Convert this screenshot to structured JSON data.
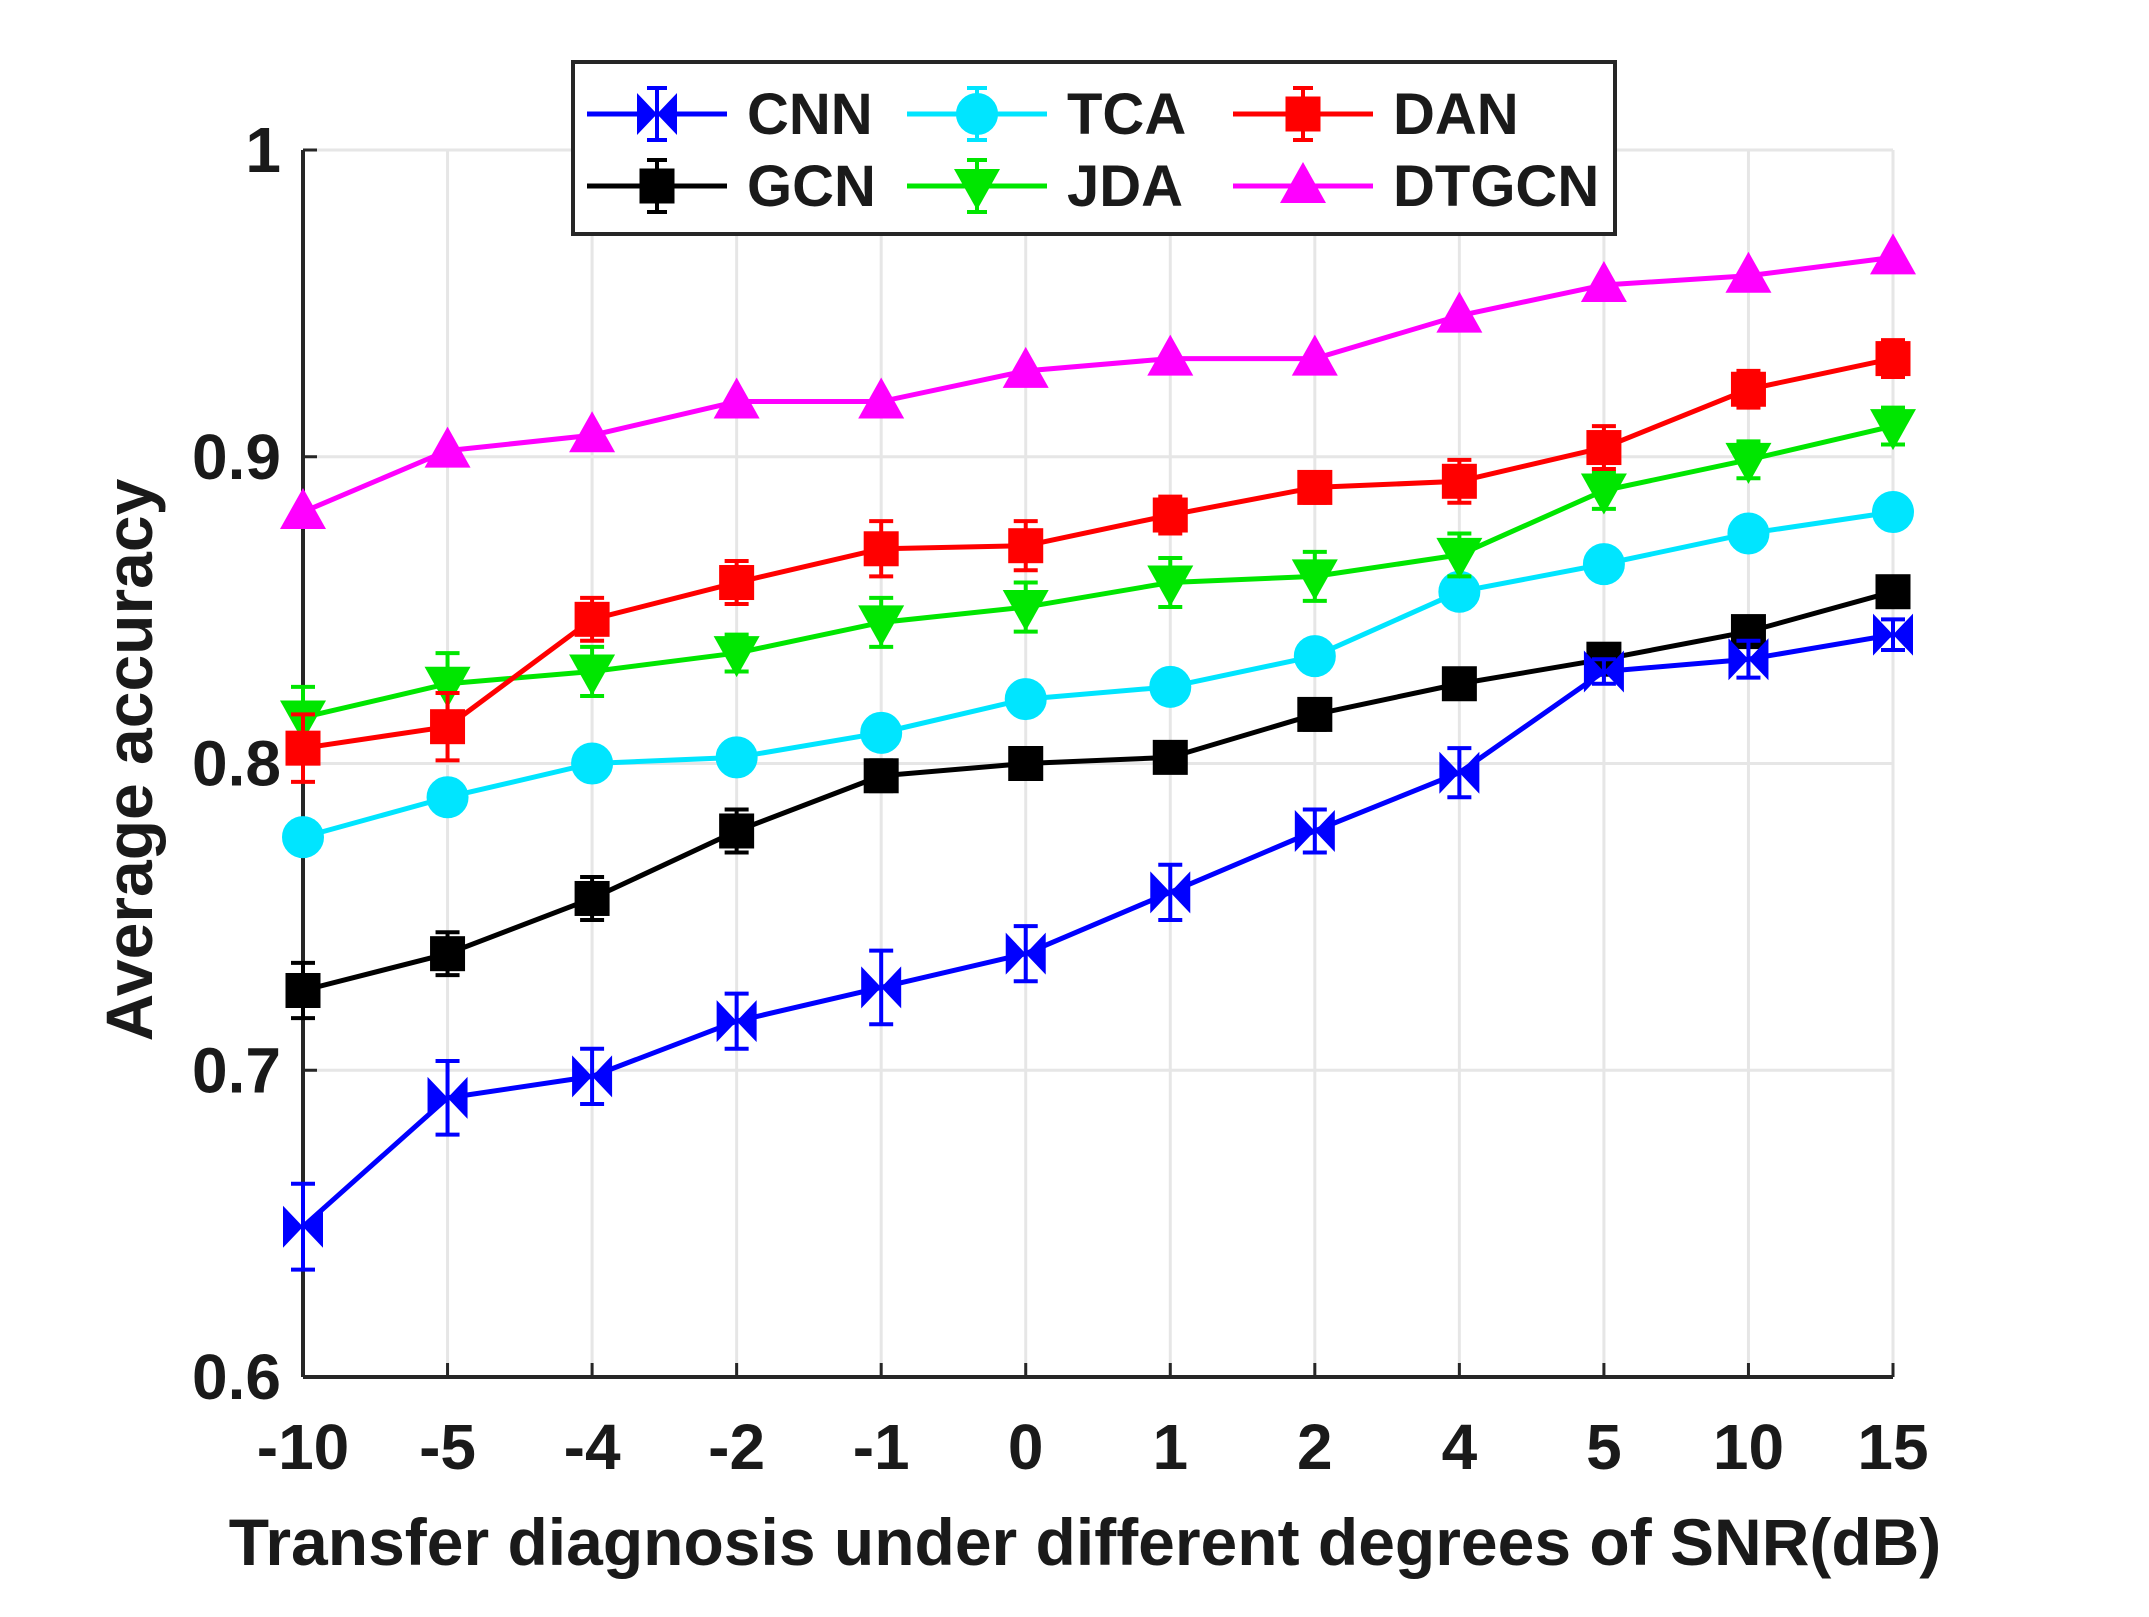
{
  "chart_data": {
    "type": "line",
    "xlabel": "Transfer diagnosis under different degrees of SNR(dB)",
    "ylabel": "Average accuracy",
    "categories": [
      "-10",
      "-5",
      "-4",
      "-2",
      "-1",
      "0",
      "1",
      "2",
      "4",
      "5",
      "10",
      "15"
    ],
    "ylim": [
      0.6,
      1.0
    ],
    "yticks": [
      "0.6",
      "0.7",
      "0.8",
      "0.9",
      "1"
    ],
    "grid": true,
    "legend_placement": "top",
    "series": [
      {
        "name": "CNN",
        "color": "#0000ff",
        "marker": "bowtie",
        "values": [
          0.649,
          0.691,
          0.698,
          0.716,
          0.727,
          0.738,
          0.758,
          0.778,
          0.797,
          0.83,
          0.834,
          0.842
        ],
        "errors": [
          0.014,
          0.012,
          0.009,
          0.009,
          0.012,
          0.009,
          0.009,
          0.007,
          0.008,
          0.004,
          0.006,
          0.005
        ]
      },
      {
        "name": "TCA",
        "color": "#00e5ff",
        "marker": "circle",
        "values": [
          0.776,
          0.789,
          0.8,
          0.802,
          0.81,
          0.821,
          0.825,
          0.835,
          0.856,
          0.865,
          0.875,
          0.882
        ],
        "errors": [
          0.005,
          0.005,
          0.004,
          0.004,
          0.004,
          0.004,
          0.004,
          0.004,
          0.004,
          0.004,
          0.004,
          0.004
        ]
      },
      {
        "name": "DAN",
        "color": "#ff0000",
        "marker": "square",
        "values": [
          0.805,
          0.812,
          0.847,
          0.859,
          0.87,
          0.871,
          0.881,
          0.89,
          0.892,
          0.903,
          0.922,
          0.932
        ],
        "errors": [
          0.011,
          0.011,
          0.007,
          0.007,
          0.009,
          0.008,
          0.006,
          0.005,
          0.007,
          0.007,
          0.006,
          0.006
        ]
      },
      {
        "name": "GCN",
        "color": "#000000",
        "marker": "square",
        "values": [
          0.726,
          0.738,
          0.756,
          0.778,
          0.796,
          0.8,
          0.802,
          0.816,
          0.826,
          0.834,
          0.843,
          0.856
        ],
        "errors": [
          0.009,
          0.007,
          0.007,
          0.007,
          0.005,
          0.004,
          0.004,
          0.005,
          0.004,
          0.004,
          0.004,
          0.004
        ]
      },
      {
        "name": "JDA",
        "color": "#00e600",
        "marker": "triangle-down",
        "values": [
          0.815,
          0.826,
          0.83,
          0.836,
          0.846,
          0.851,
          0.859,
          0.861,
          0.868,
          0.889,
          0.899,
          0.91
        ],
        "errors": [
          0.01,
          0.01,
          0.008,
          0.006,
          0.008,
          0.008,
          0.008,
          0.008,
          0.007,
          0.006,
          0.006,
          0.006
        ]
      },
      {
        "name": "DTGCN",
        "color": "#ff00ff",
        "marker": "triangle-up",
        "values": [
          0.882,
          0.902,
          0.907,
          0.918,
          0.918,
          0.928,
          0.932,
          0.932,
          0.946,
          0.956,
          0.959,
          0.965
        ],
        "errors": [
          0,
          0,
          0,
          0,
          0,
          0,
          0,
          0,
          0,
          0,
          0,
          0
        ]
      }
    ],
    "legend_order": [
      "CNN",
      "TCA",
      "DAN",
      "GCN",
      "JDA",
      "DTGCN"
    ]
  }
}
